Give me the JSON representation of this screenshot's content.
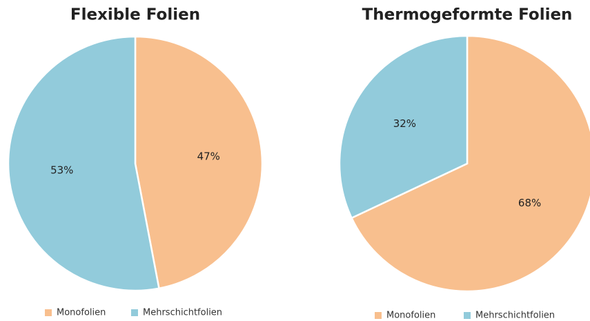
{
  "chart_data": [
    {
      "type": "pie",
      "title": "Flexible Folien",
      "categories": [
        "Monofolien",
        "Mehrschichtfolien"
      ],
      "values": [
        47,
        53
      ],
      "value_labels": [
        "47%",
        "53%"
      ],
      "colors": [
        "#f8bf8e",
        "#92cbdb"
      ],
      "legend": "bottom"
    },
    {
      "type": "pie",
      "title": "Thermogeformte Folien",
      "categories": [
        "Monofolien",
        "Mehrschichtfolien"
      ],
      "values": [
        68,
        32
      ],
      "value_labels": [
        "68%",
        "32%"
      ],
      "colors": [
        "#f8bf8e",
        "#92cbdb"
      ],
      "legend": "bottom"
    }
  ]
}
